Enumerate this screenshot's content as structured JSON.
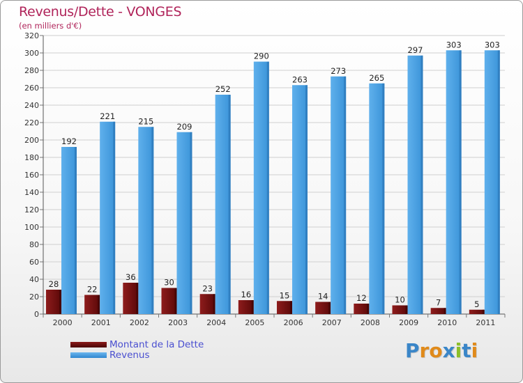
{
  "title": "Revenus/Dette - VONGES",
  "subtitle": "(en milliers d'€)",
  "legend": {
    "items": [
      {
        "label": "Montant de la Dette",
        "color": "#6b0a0a"
      },
      {
        "label": "Revenus",
        "color": "#4aa0e2"
      }
    ]
  },
  "logo": {
    "text": "Proxiti",
    "letters": [
      {
        "ch": "P",
        "color": "#3a86c8"
      },
      {
        "ch": "r",
        "color": "#e08a1a"
      },
      {
        "ch": "o",
        "color": "#e08a1a"
      },
      {
        "ch": "x",
        "color": "#3a86c8"
      },
      {
        "ch": "i",
        "color": "#8cbf2a"
      },
      {
        "ch": "t",
        "color": "#3a86c8"
      },
      {
        "ch": "i",
        "color": "#e08a1a"
      }
    ]
  },
  "chart_data": {
    "type": "bar",
    "title": "Revenus/Dette - VONGES",
    "subtitle": "(en milliers d'€)",
    "categories": [
      "2000",
      "2001",
      "2002",
      "2003",
      "2004",
      "2005",
      "2006",
      "2007",
      "2008",
      "2009",
      "2010",
      "2011"
    ],
    "series": [
      {
        "name": "Montant de la Dette",
        "color": "#6b0a0a",
        "values": [
          28,
          22,
          36,
          30,
          23,
          16,
          15,
          14,
          12,
          10,
          7,
          5
        ]
      },
      {
        "name": "Revenus",
        "color": "#4aa0e2",
        "values": [
          192,
          221,
          215,
          209,
          252,
          290,
          263,
          273,
          265,
          297,
          303,
          303
        ]
      }
    ],
    "ylim": [
      0,
      320
    ],
    "yticks": [
      0,
      20,
      40,
      60,
      80,
      100,
      120,
      140,
      160,
      180,
      200,
      220,
      240,
      260,
      280,
      300,
      320
    ],
    "grid": true,
    "legend_position": "bottom-left"
  }
}
